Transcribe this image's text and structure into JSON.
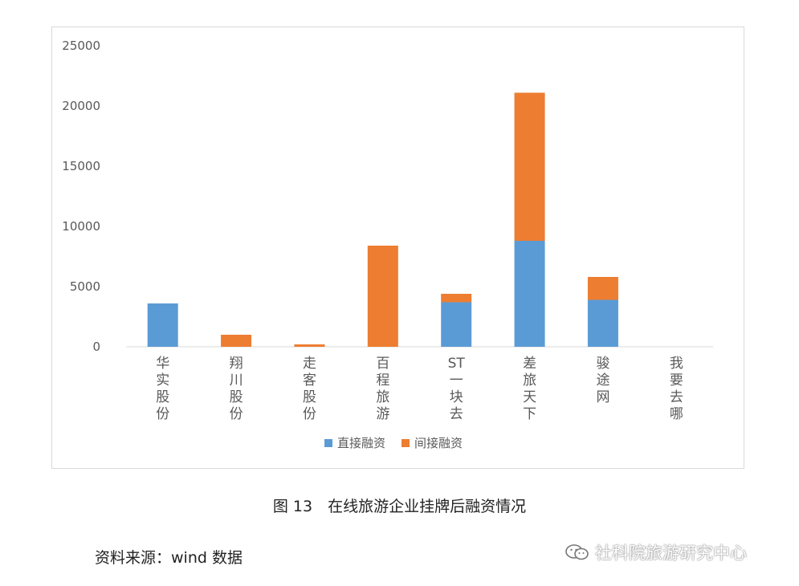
{
  "chart_data": {
    "type": "bar",
    "stacked": true,
    "categories": [
      "华实股份",
      "翔川股份",
      "走客股份",
      "百程旅游",
      "ST一块去",
      "差旅天下",
      "骏途网",
      "我要去哪"
    ],
    "category_label_lines": [
      [
        "华",
        "实",
        "股",
        "份"
      ],
      [
        "翔",
        "川",
        "股",
        "份"
      ],
      [
        "走",
        "客",
        "股",
        "份"
      ],
      [
        "百",
        "程",
        "旅",
        "游"
      ],
      [
        "ST",
        "一",
        "块",
        "去"
      ],
      [
        "差",
        "旅",
        "天",
        "下"
      ],
      [
        "骏",
        "途",
        "网"
      ],
      [
        "我",
        "要",
        "去",
        "哪"
      ]
    ],
    "series": [
      {
        "name": "直接融资",
        "color": "#5b9bd5",
        "values": [
          3600,
          0,
          0,
          0,
          3700,
          8800,
          3900,
          0
        ]
      },
      {
        "name": "间接融资",
        "color": "#ed7d31",
        "values": [
          0,
          1000,
          200,
          8400,
          700,
          12300,
          1900,
          0
        ]
      }
    ],
    "ylim": [
      0,
      25000
    ],
    "yticks": [
      0,
      5000,
      10000,
      15000,
      20000,
      25000
    ],
    "grid": false,
    "legend_position": "bottom"
  },
  "caption": "图 13　在线旅游企业挂牌后融资情况",
  "source": "资料来源：wind 数据",
  "watermark": "社科院旅游研究中心"
}
